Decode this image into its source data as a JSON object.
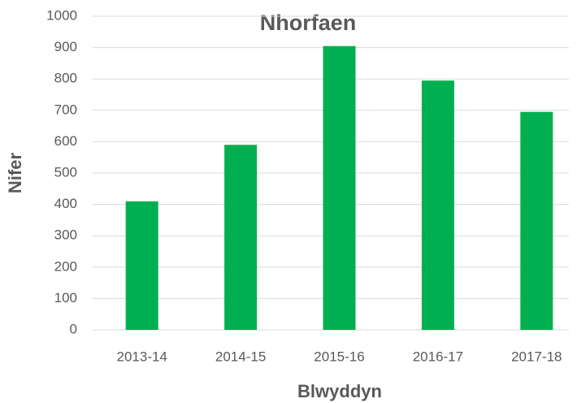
{
  "chart_data": {
    "type": "bar",
    "title": "Nhorfaen",
    "x_label": "Blwyddyn",
    "y_label": "Nifer",
    "categories": [
      "2013-14",
      "2014-15",
      "2015-16",
      "2016-17",
      "2017-18"
    ],
    "values": [
      410,
      590,
      905,
      795,
      695
    ],
    "color": "#00b050",
    "ylim": [
      0,
      1000
    ],
    "yticks": [
      0,
      100,
      200,
      300,
      400,
      500,
      600,
      700,
      800,
      900,
      1000
    ],
    "grid": true
  }
}
